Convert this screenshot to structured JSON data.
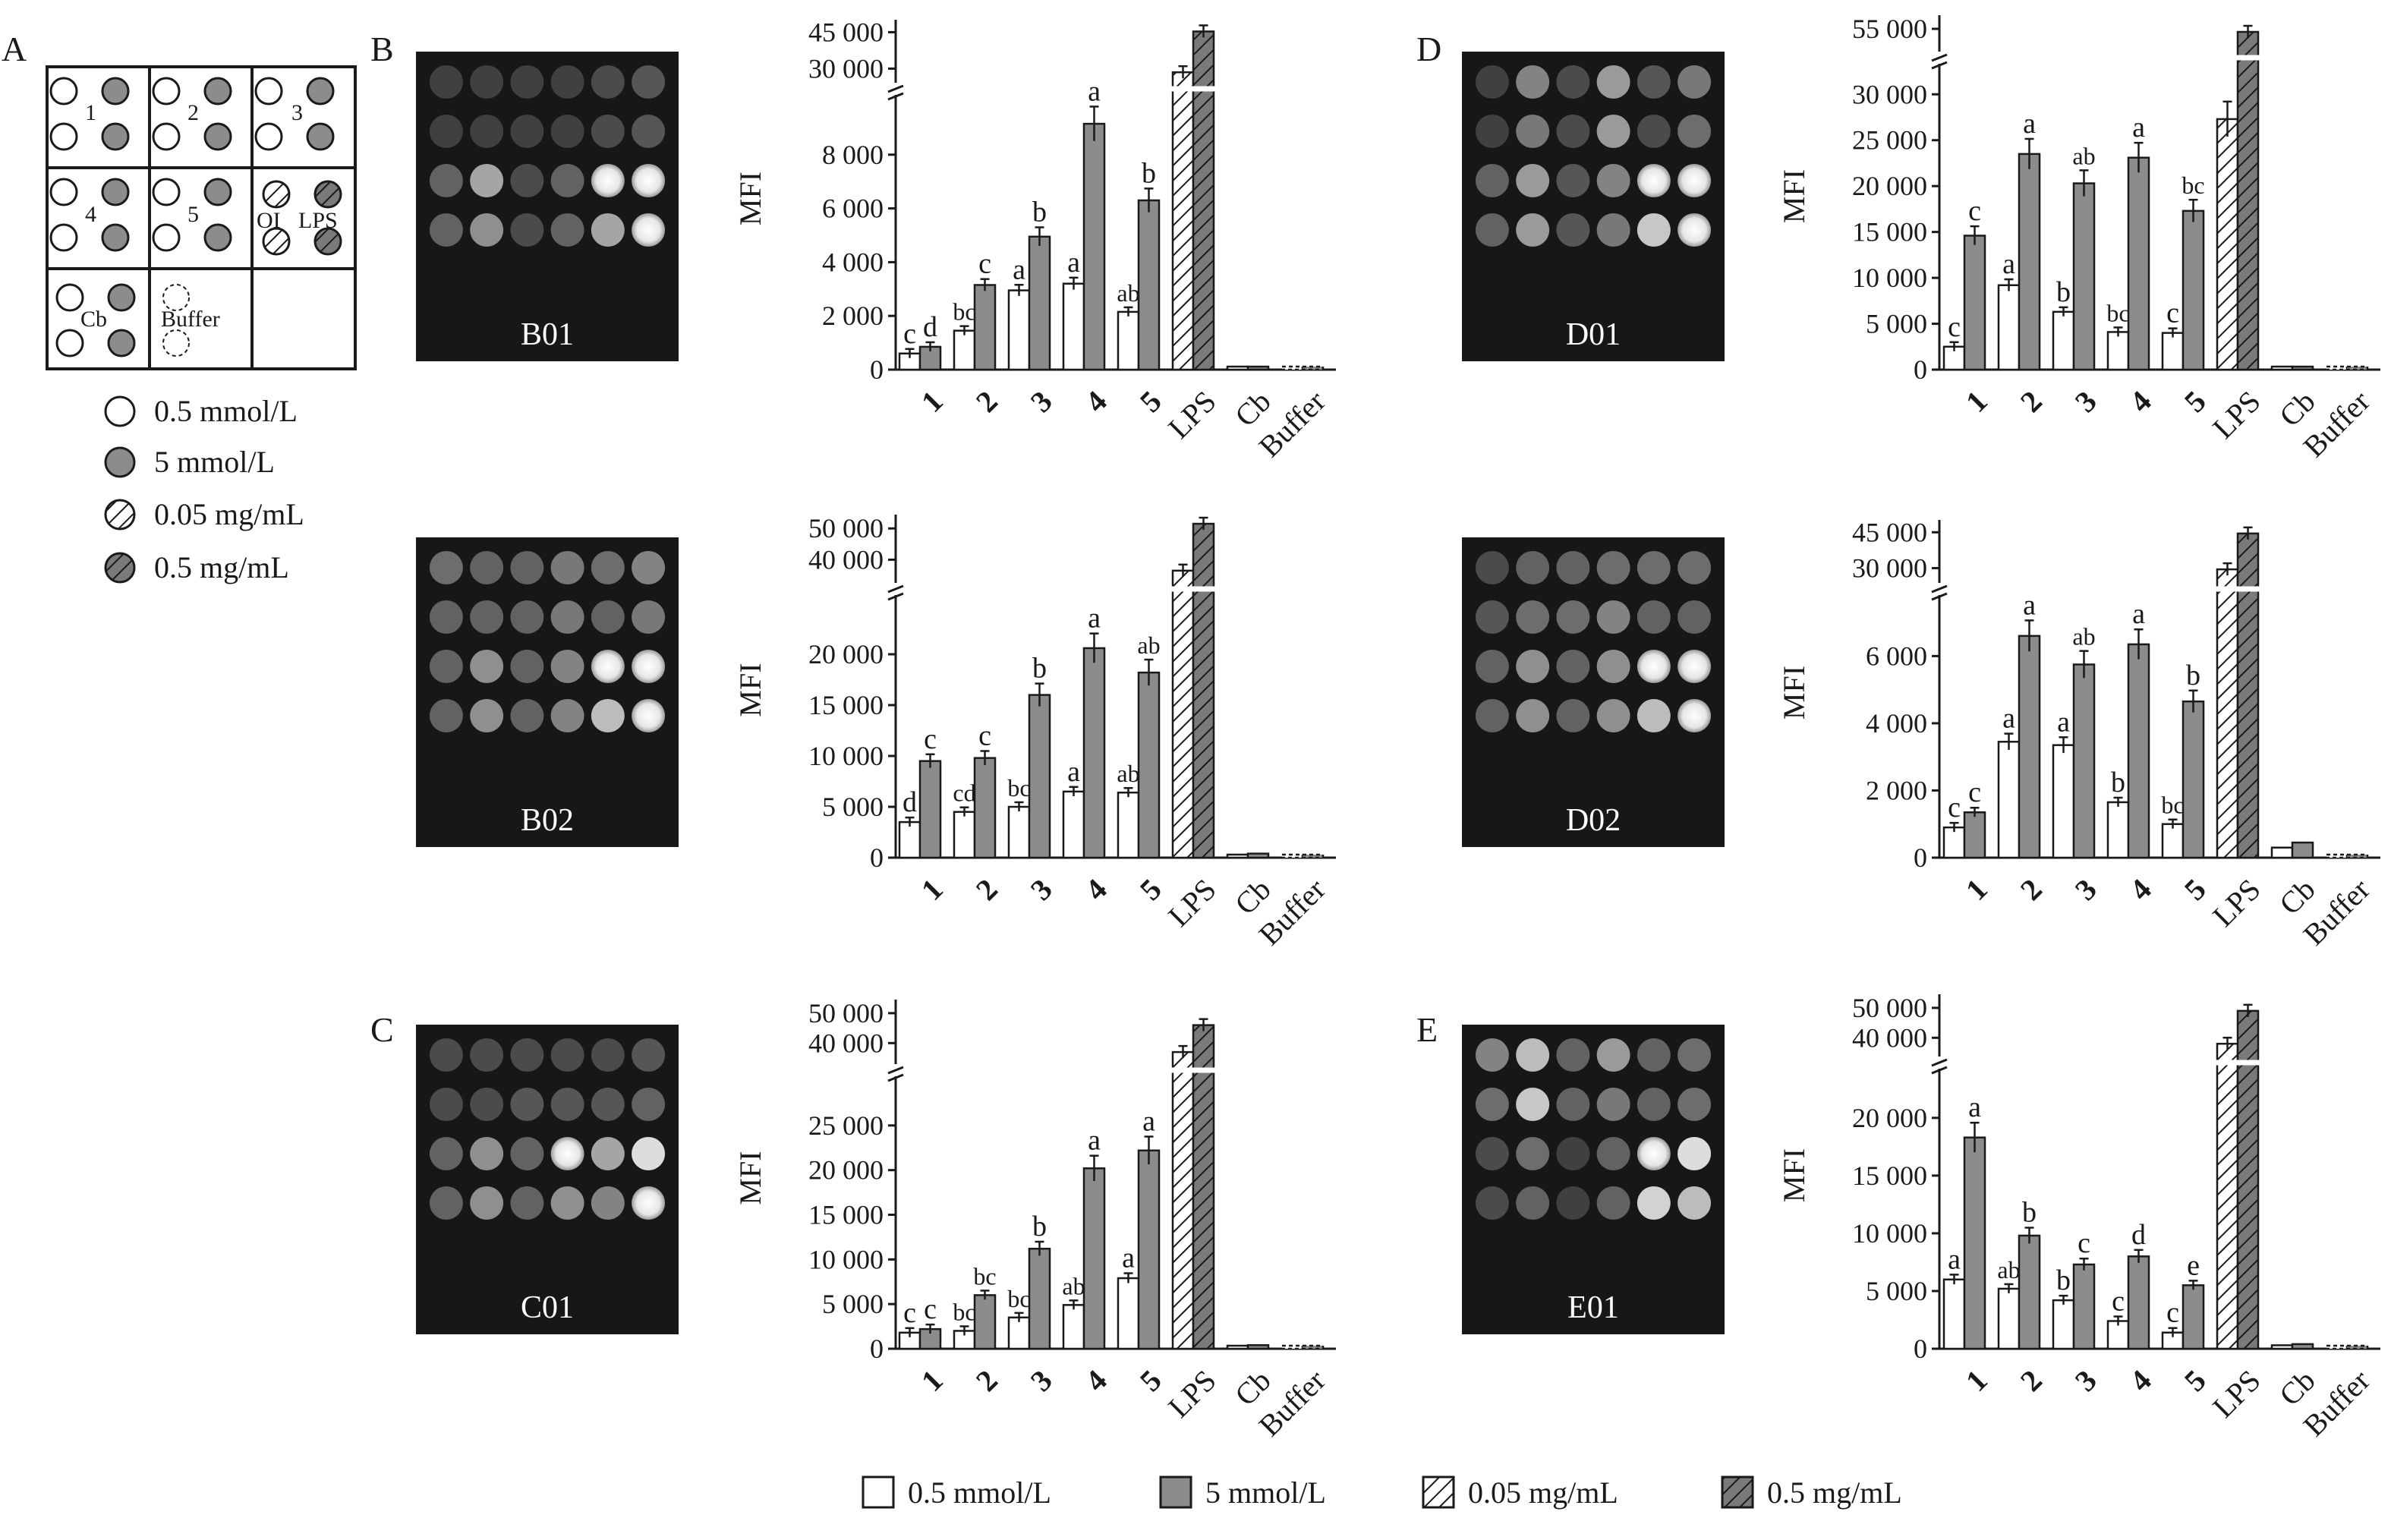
{
  "panels": {
    "A": "A",
    "B": "B",
    "C": "C",
    "D": "D",
    "E": "E"
  },
  "layout_diagram": {
    "cells": [
      "1",
      "2",
      "3",
      "4",
      "5",
      "OI",
      "LPS",
      "Cb",
      "Buffer"
    ],
    "key": [
      "0.5 mmol/L",
      "5 mmol/L",
      "0.05 mg/mL",
      "0.5 mg/mL"
    ]
  },
  "legend": {
    "items": [
      "0.5 mmol/L",
      "5 mmol/L",
      "0.05 mg/mL",
      "0.5 mg/mL"
    ]
  },
  "colors": {
    "low_fill": "#ffffff",
    "high_fill": "#8c8c8c",
    "blot_bg": "#1a1a1a",
    "axis": "#1a1a1a"
  },
  "chart_data": [
    {
      "id": "B01",
      "type": "bar",
      "blot_label": "B01",
      "ylabel": "MFI",
      "categories": [
        "1",
        "2",
        "3",
        "4",
        "5",
        "LPS",
        "Cb",
        "Buffer"
      ],
      "lower_ticks": [
        "0",
        "2 000",
        "4 000",
        "6 000",
        "8 000"
      ],
      "upper_ticks": [
        "30 000",
        "45 000"
      ],
      "ylim_lower": [
        0,
        10000
      ],
      "ylim_upper": [
        27000,
        47000
      ],
      "series": [
        {
          "name": "0.5 mmol/L",
          "values": [
            600,
            1450,
            2950,
            3200,
            2150,
            null,
            0,
            0
          ]
        },
        {
          "name": "5 mmol/L",
          "values": [
            850,
            3150,
            4950,
            9150,
            6300,
            null,
            100,
            0
          ]
        },
        {
          "name": "0.05 mg/mL",
          "values": [
            null,
            null,
            null,
            null,
            null,
            28500,
            null,
            null
          ]
        },
        {
          "name": "0.5 mg/mL",
          "values": [
            null,
            null,
            null,
            null,
            null,
            45300,
            null,
            null
          ]
        }
      ],
      "letters_low": [
        "c",
        "bc",
        "a",
        "a",
        "ab",
        "",
        "",
        ""
      ],
      "letters_high": [
        "d",
        "c",
        "b",
        "a",
        "b",
        "",
        "",
        ""
      ]
    },
    {
      "id": "B02",
      "type": "bar",
      "blot_label": "B02",
      "ylabel": "MFI",
      "categories": [
        "1",
        "2",
        "3",
        "4",
        "5",
        "LPS",
        "Cb",
        "Buffer"
      ],
      "lower_ticks": [
        "0",
        "5 000",
        "10 000",
        "15 000",
        "20 000"
      ],
      "upper_ticks": [
        "40 000",
        "50 000"
      ],
      "ylim_lower": [
        0,
        25000
      ],
      "ylim_upper": [
        35000,
        52000
      ],
      "series": [
        {
          "name": "0.5 mmol/L",
          "values": [
            3500,
            4500,
            5000,
            6500,
            6400,
            null,
            300,
            0
          ]
        },
        {
          "name": "5 mmol/L",
          "values": [
            9500,
            9800,
            16000,
            20600,
            18200,
            null,
            400,
            0
          ]
        },
        {
          "name": "0.05 mg/mL",
          "values": [
            null,
            null,
            null,
            null,
            null,
            36500,
            null,
            null
          ]
        },
        {
          "name": "0.5 mg/mL",
          "values": [
            null,
            null,
            null,
            null,
            null,
            51500,
            null,
            null
          ]
        }
      ],
      "letters_low": [
        "d",
        "cd",
        "bc",
        "a",
        "ab",
        "",
        "",
        ""
      ],
      "letters_high": [
        "c",
        "c",
        "b",
        "a",
        "ab",
        "",
        "",
        ""
      ]
    },
    {
      "id": "C01",
      "type": "bar",
      "blot_label": "C01",
      "ylabel": "MFI",
      "categories": [
        "1",
        "2",
        "3",
        "4",
        "5",
        "LPS",
        "Cb",
        "Buffer"
      ],
      "lower_ticks": [
        "0",
        "5 000",
        "10 000",
        "15 000",
        "20 000",
        "25 000"
      ],
      "upper_ticks": [
        "40 000",
        "50 000"
      ],
      "ylim_lower": [
        0,
        30000
      ],
      "ylim_upper": [
        35000,
        52000
      ],
      "series": [
        {
          "name": "0.5 mmol/L",
          "values": [
            1800,
            2000,
            3500,
            4900,
            7900,
            null,
            200,
            0
          ]
        },
        {
          "name": "5 mmol/L",
          "values": [
            2200,
            6000,
            11200,
            20200,
            22200,
            null,
            400,
            0
          ]
        },
        {
          "name": "0.05 mg/mL",
          "values": [
            null,
            null,
            null,
            null,
            null,
            37000,
            null,
            null
          ]
        },
        {
          "name": "0.5 mg/mL",
          "values": [
            null,
            null,
            null,
            null,
            null,
            46000,
            null,
            null
          ]
        }
      ],
      "letters_low": [
        "c",
        "bc",
        "bc",
        "ab",
        "a",
        "",
        "",
        ""
      ],
      "letters_high": [
        "c",
        "bc",
        "b",
        "a",
        "a",
        "",
        "",
        ""
      ]
    },
    {
      "id": "D01",
      "type": "bar",
      "blot_label": "D01",
      "ylabel": "MFI",
      "categories": [
        "1",
        "2",
        "3",
        "4",
        "5",
        "LPS",
        "Cb",
        "Buffer"
      ],
      "lower_ticks": [
        "0",
        "5 000",
        "10 000",
        "15 000",
        "20 000",
        "25 000",
        "30 000"
      ],
      "upper_ticks": [
        "55 000"
      ],
      "ylim_lower": [
        0,
        33000
      ],
      "ylim_upper": [
        52000,
        56000
      ],
      "series": [
        {
          "name": "0.5 mmol/L",
          "values": [
            2500,
            9200,
            6300,
            4100,
            4000,
            null,
            200,
            0
          ]
        },
        {
          "name": "5 mmol/L",
          "values": [
            14600,
            23500,
            20300,
            23100,
            17300,
            null,
            300,
            0
          ]
        },
        {
          "name": "0.05 mg/mL",
          "values": [
            null,
            null,
            null,
            null,
            null,
            27300,
            null,
            null
          ]
        },
        {
          "name": "0.5 mg/mL",
          "values": [
            null,
            null,
            null,
            null,
            null,
            54500,
            null,
            null
          ]
        }
      ],
      "letters_low": [
        "c",
        "a",
        "b",
        "bc",
        "c",
        "",
        "",
        ""
      ],
      "letters_high": [
        "c",
        "a",
        "ab",
        "a",
        "bc",
        "",
        "",
        ""
      ]
    },
    {
      "id": "D02",
      "type": "bar",
      "blot_label": "D02",
      "ylabel": "MFI",
      "categories": [
        "1",
        "2",
        "3",
        "4",
        "5",
        "LPS",
        "Cb",
        "Buffer"
      ],
      "lower_ticks": [
        "0",
        "2 000",
        "4 000",
        "6 000"
      ],
      "upper_ticks": [
        "30 000",
        "45 000"
      ],
      "ylim_lower": [
        0,
        7500
      ],
      "ylim_upper": [
        27000,
        47000
      ],
      "series": [
        {
          "name": "0.5 mmol/L",
          "values": [
            900,
            3450,
            3350,
            1650,
            1000,
            null,
            300,
            0
          ]
        },
        {
          "name": "5 mmol/L",
          "values": [
            1350,
            6600,
            5750,
            6350,
            4650,
            null,
            450,
            0
          ]
        },
        {
          "name": "0.05 mg/mL",
          "values": [
            null,
            null,
            null,
            null,
            null,
            29500,
            null,
            null
          ]
        },
        {
          "name": "0.5 mg/mL",
          "values": [
            null,
            null,
            null,
            null,
            null,
            44500,
            null,
            null
          ]
        }
      ],
      "letters_low": [
        "c",
        "a",
        "a",
        "b",
        "bc",
        "",
        "",
        ""
      ],
      "letters_high": [
        "c",
        "a",
        "ab",
        "a",
        "b",
        "",
        "",
        ""
      ]
    },
    {
      "id": "E01",
      "type": "bar",
      "blot_label": "E01",
      "ylabel": "MFI",
      "categories": [
        "1",
        "2",
        "3",
        "4",
        "5",
        "LPS",
        "Cb",
        "Buffer"
      ],
      "lower_ticks": [
        "0",
        "5 000",
        "10 000",
        "15 000",
        "20 000"
      ],
      "upper_ticks": [
        "40 000",
        "50 000"
      ],
      "ylim_lower": [
        0,
        24000
      ],
      "ylim_upper": [
        35000,
        52000
      ],
      "series": [
        {
          "name": "0.5 mmol/L",
          "values": [
            6000,
            5200,
            4200,
            2400,
            1400,
            null,
            300,
            0
          ]
        },
        {
          "name": "5 mmol/L",
          "values": [
            18300,
            9800,
            7300,
            8000,
            5500,
            null,
            400,
            0
          ]
        },
        {
          "name": "0.05 mg/mL",
          "values": [
            null,
            null,
            null,
            null,
            null,
            38000,
            null,
            null
          ]
        },
        {
          "name": "0.5 mg/mL",
          "values": [
            null,
            null,
            null,
            null,
            null,
            49000,
            null,
            null
          ]
        }
      ],
      "letters_low": [
        "a",
        "ab",
        "b",
        "c",
        "c",
        "",
        "",
        ""
      ],
      "letters_high": [
        "a",
        "b",
        "c",
        "d",
        "e",
        "",
        "",
        ""
      ]
    }
  ]
}
